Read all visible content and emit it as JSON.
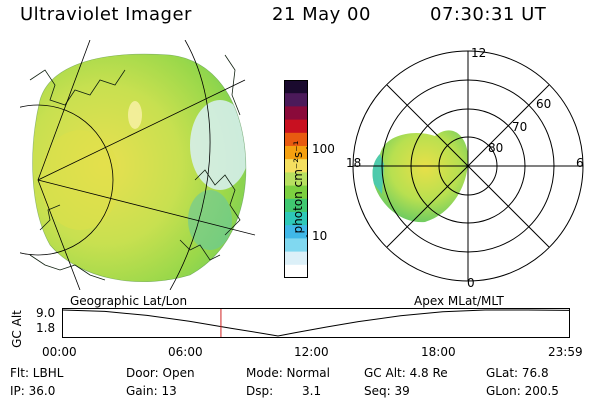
{
  "header": {
    "instrument": "Ultraviolet Imager",
    "date": "21 May 00",
    "time": "07:30:31 UT"
  },
  "colorbar": {
    "unit_label": "photon cm⁻²s⁻¹",
    "ticks": [
      "100",
      "10"
    ],
    "colors": [
      "#1a0a2e",
      "#4b1a5a",
      "#8a0a3a",
      "#c81020",
      "#e85a10",
      "#f5a010",
      "#f5e060",
      "#b8e060",
      "#7cd040",
      "#40c870",
      "#2ec8b8",
      "#40b8e8",
      "#80d8f0",
      "#dcf0f8",
      "#ffffff"
    ]
  },
  "polar_plot": {
    "mlt_labels": {
      "top": "12",
      "left": "18",
      "right": "6",
      "bottom": "0"
    },
    "lat_labels": [
      "60",
      "70",
      "80"
    ]
  },
  "timeline": {
    "left_title": "Geographic Lat/Lon",
    "right_title": "Apex MLat/MLT",
    "y_axis_label": "GC Alt",
    "y_ticks": [
      "9.0",
      "1.8"
    ],
    "x_ticks": [
      "00:00",
      "06:00",
      "12:00",
      "18:00",
      "23:59"
    ],
    "altitude_samples": [
      {
        "t": 0,
        "alt": 9.0
      },
      {
        "t": 2,
        "alt": 8.6
      },
      {
        "t": 4,
        "alt": 7.5
      },
      {
        "t": 6,
        "alt": 5.9
      },
      {
        "t": 8,
        "alt": 3.9
      },
      {
        "t": 9.5,
        "alt": 2.5
      },
      {
        "t": 10.2,
        "alt": 1.8
      },
      {
        "t": 11,
        "alt": 2.7
      },
      {
        "t": 12.5,
        "alt": 4.3
      },
      {
        "t": 14,
        "alt": 5.8
      },
      {
        "t": 16,
        "alt": 7.4
      },
      {
        "t": 18,
        "alt": 8.5
      },
      {
        "t": 20,
        "alt": 9.0
      },
      {
        "t": 22,
        "alt": 9.0
      },
      {
        "t": 23.98,
        "alt": 8.9
      }
    ],
    "current_time_hours": 7.5,
    "marker_color": "#d02020"
  },
  "footer": {
    "flt": "Flt: LBHL",
    "ip": "IP: 36.0",
    "door": "Door: Open",
    "gain": "Gain: 13",
    "mode": "Mode: Normal",
    "dsp_label": "Dsp:",
    "dsp_value": "3.1",
    "gc_alt": "GC Alt: 4.8 Re",
    "seq": "Seq: 39",
    "glat": "GLat: 76.8",
    "glon": "GLon: 200.5"
  }
}
